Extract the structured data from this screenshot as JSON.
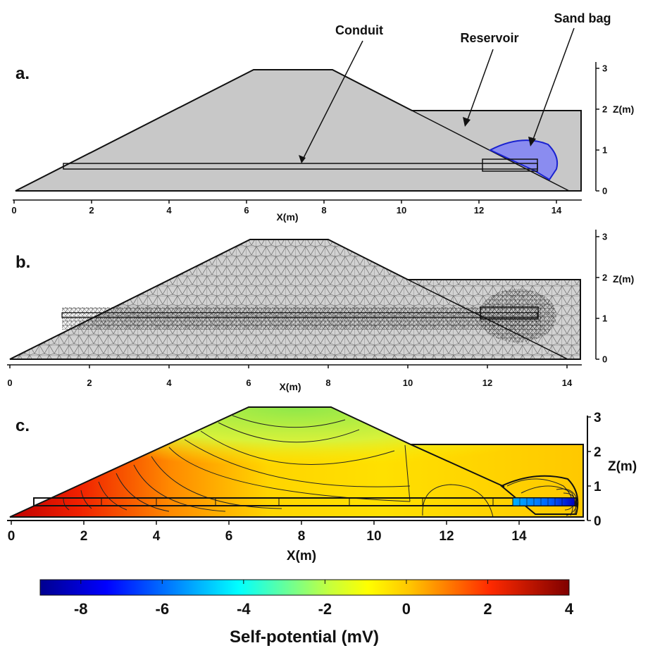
{
  "panel_a": {
    "label": "a.",
    "annotations": {
      "conduit": "Conduit",
      "reservoir": "Reservoir",
      "sand_bag": "Sand bag"
    },
    "x_ticks": [
      "0",
      "2",
      "4",
      "6",
      "8",
      "10",
      "12",
      "14"
    ],
    "x_label": "X(m)",
    "z_ticks": [
      "0",
      "1",
      "2",
      "3"
    ],
    "z_label": "Z(m)"
  },
  "panel_b": {
    "label": "b.",
    "x_ticks": [
      "0",
      "2",
      "4",
      "6",
      "8",
      "10",
      "12",
      "14"
    ],
    "x_label": "X(m)",
    "z_ticks": [
      "0",
      "1",
      "2",
      "3"
    ],
    "z_label": "Z(m)"
  },
  "panel_c": {
    "label": "c.",
    "x_ticks": [
      "0",
      "2",
      "4",
      "6",
      "8",
      "10",
      "12",
      "14"
    ],
    "x_label": "X(m)",
    "z_ticks": [
      "0",
      "1",
      "2",
      "3"
    ],
    "z_label": "Z(m)"
  },
  "colorbar": {
    "ticks": [
      "-8",
      "-6",
      "-4",
      "-2",
      "0",
      "2",
      "4"
    ],
    "label": "Self-potential (mV)",
    "range": [
      -9,
      4
    ],
    "colormap": "jet"
  },
  "colors": {
    "domain": "#c8c8c8",
    "sand_bag": "#8a8cf0",
    "outline": "#111111"
  }
}
